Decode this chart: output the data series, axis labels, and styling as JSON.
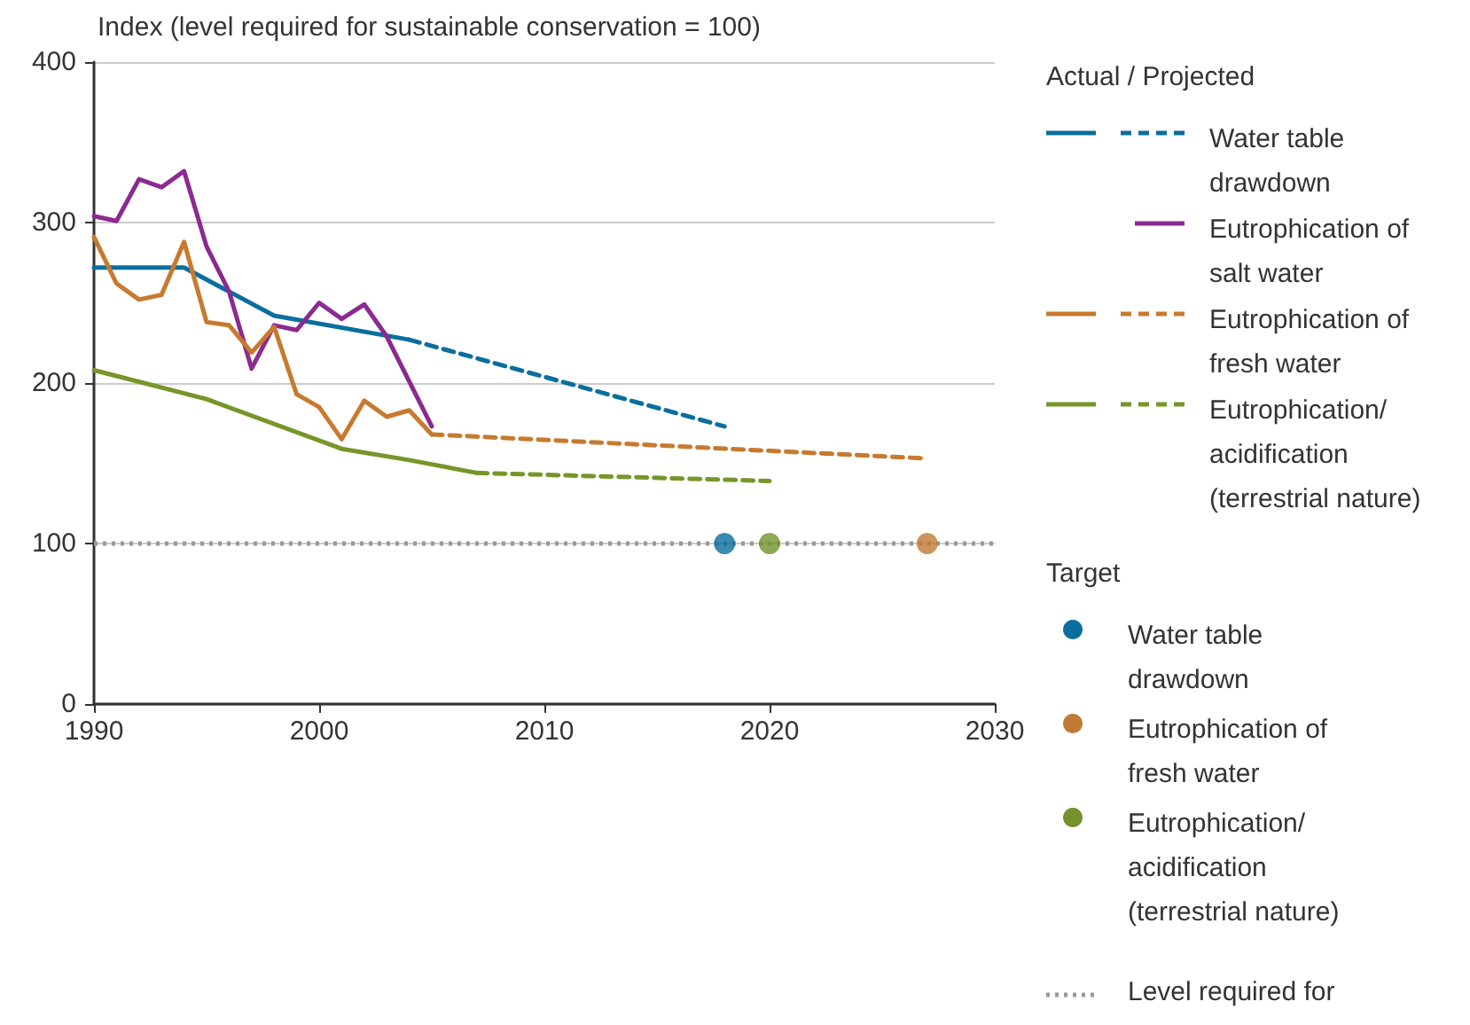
{
  "chart_data": {
    "type": "line",
    "ylabel": "Index (level required for sustainable conservation = 100)",
    "legend_title": "Actual / Projected",
    "annotations": [
      "Target"
    ],
    "xlim": [
      1990,
      2030
    ],
    "xticks": [
      1990,
      2000,
      2010,
      2020,
      2030
    ],
    "ylim": [
      0,
      400
    ],
    "yticks": [
      0,
      100,
      200,
      300,
      400
    ],
    "grid": "y",
    "legend": "right",
    "marker": "none",
    "series": [
      {
        "name": "Water table drawdown",
        "color": "#0a6e9e",
        "line_style": "solid",
        "x": [
          1990,
          1994,
          1998,
          2004
        ],
        "values": [
          272,
          272,
          242,
          227
        ]
      },
      {
        "color": "#0a6e9e",
        "line_style": "dashed",
        "x": [
          2004,
          2018
        ],
        "values": [
          227,
          173
        ]
      },
      {
        "name": "Eutrophication of salt water",
        "color": "#8b2a8f",
        "line_style": "solid",
        "x": [
          1990,
          1991,
          1992,
          1993,
          1994,
          1995,
          1996,
          1997,
          1998,
          1999,
          2000,
          2001,
          2002,
          2003,
          2005
        ],
        "values": [
          304,
          301,
          327,
          322,
          332,
          285,
          257,
          209,
          236,
          233,
          250,
          240,
          249,
          229,
          173
        ]
      },
      {
        "name": "Eutrophication of fresh water",
        "color": "#c77a2f",
        "line_style": "solid",
        "x": [
          1990,
          1991,
          1992,
          1993,
          1994,
          1995,
          1996,
          1997,
          1998,
          1999,
          2000,
          2001,
          2002,
          2003,
          2004,
          2005
        ],
        "values": [
          291,
          262,
          252,
          255,
          288,
          238,
          236,
          219,
          235,
          193,
          185,
          165,
          189,
          179,
          183,
          168
        ]
      },
      {
        "color": "#c77a2f",
        "line_style": "dashed",
        "x": [
          2005,
          2027
        ],
        "values": [
          168,
          153
        ]
      },
      {
        "name": "Eutrophication/ acidification (terrestrial nature)",
        "color": "#76962a",
        "line_style": "solid",
        "x": [
          1990,
          1995,
          2001,
          2004,
          2007
        ],
        "values": [
          208,
          190,
          159,
          152,
          144
        ]
      },
      {
        "color": "#76962a",
        "line_style": "dashed",
        "x": [
          2007,
          2020
        ],
        "values": [
          144,
          139
        ]
      },
      {
        "name": "Water table drawdown",
        "type": "scatter",
        "marker": "circle",
        "color": "#0a6e9e",
        "x": [
          2018
        ],
        "values": [
          100
        ]
      },
      {
        "name": "Eutrophication of fresh water",
        "type": "scatter",
        "marker": "circle",
        "color": "#c07a34",
        "x": [
          2027
        ],
        "values": [
          100
        ]
      },
      {
        "name": "Eutrophication/ acidification (terrestrial nature)",
        "type": "scatter",
        "marker": "circle",
        "color": "#73922b",
        "x": [
          2020
        ],
        "values": [
          100
        ]
      }
    ],
    "ref_lines": [
      {
        "axis": "y",
        "value": 100,
        "label": "Level required for",
        "color": "#999999",
        "line_style": "dotted"
      }
    ]
  }
}
